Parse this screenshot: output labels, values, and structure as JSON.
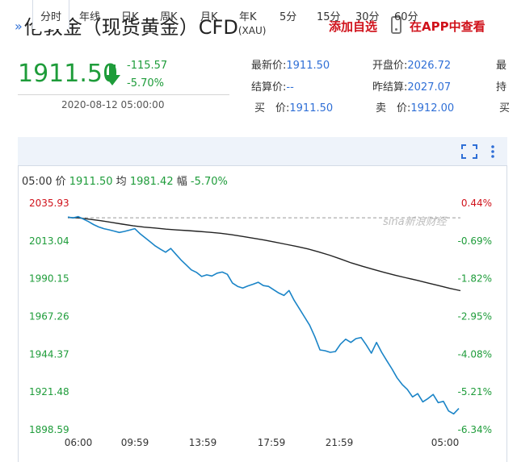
{
  "header": {
    "title": "伦敦金（现货黄金）CFD",
    "code": "(XAU)",
    "add_watch": "添加自选",
    "view_app": "在APP中查看"
  },
  "quote": {
    "price": "1911.50",
    "change": "-115.57",
    "change_pct": "-5.70%",
    "datetime": "2020-08-12 05:00:00",
    "fields": [
      {
        "label": "最新价:",
        "value": "1911.50"
      },
      {
        "label": "开盘价:",
        "value": "2026.72"
      },
      {
        "label": "结算价:",
        "value": "--"
      },
      {
        "label": "昨结算:",
        "value": "2027.07"
      },
      {
        "label": "买　价:",
        "value": "1911.50"
      },
      {
        "label": "卖　价:",
        "value": "1912.00"
      }
    ],
    "cut_labels": [
      "最",
      "持",
      "买"
    ]
  },
  "tabs": [
    "分时",
    "年线",
    "日K",
    "周K",
    "月K",
    "年K",
    "5分",
    "15分",
    "30分",
    "60分"
  ],
  "tools": {
    "fullscreen": "fullscreen-icon",
    "more": "more-icon"
  },
  "info_bar": {
    "time": "05:00",
    "price_label": "价",
    "price": "1911.50",
    "avg_label": "均",
    "avg": "1981.42",
    "amp_label": "幅",
    "amp": "-5.70%"
  },
  "watermark": "sina新浪财经",
  "colors": {
    "up": "#d0121b",
    "down": "#1e9c3a",
    "line": "#1a84c7",
    "avg": "#222222",
    "accent": "#2f6fd6"
  },
  "chart_data": {
    "type": "line",
    "y_left_ticks": [
      "2035.93",
      "2013.04",
      "1990.15",
      "1967.26",
      "1944.37",
      "1921.48",
      "1898.59"
    ],
    "y_right_ticks": [
      "0.44%",
      "-0.69%",
      "-1.82%",
      "-2.95%",
      "-4.08%",
      "-5.21%",
      "-6.34%"
    ],
    "x_ticks": [
      "06:00",
      "09:59",
      "13:59",
      "17:59",
      "21:59",
      "05:00"
    ],
    "ylim": [
      1898.59,
      2035.93
    ],
    "reference_close": 2027.07,
    "series": [
      {
        "values": [
          2027.5,
          2027.0,
          2027.8,
          2026.3,
          2024.8,
          2023.0,
          2021.5,
          2020.5,
          2019.8,
          2019.0,
          2018.2,
          2018.8,
          2019.6,
          2020.5,
          2017.5,
          2015.0,
          2012.5,
          2010.0,
          2008.0,
          2006.2,
          2008.5,
          2005.0,
          2001.5,
          1998.5,
          1995.5,
          1994.0,
          1991.5,
          1992.5,
          1991.8,
          1993.5,
          1994.2,
          1992.8,
          1987.5,
          1985.5,
          1984.5,
          1985.8,
          1986.8,
          1988.0,
          1986.0,
          1985.5,
          1983.5,
          1981.5,
          1980.0,
          1983.0,
          1977.0,
          1972.0,
          1967.0,
          1962.0,
          1955.0,
          1947.0,
          1946.5,
          1945.5,
          1946.0,
          1950.5,
          1953.5,
          1951.5,
          1953.8,
          1954.5,
          1950.0,
          1945.0,
          1951.5,
          1945.5,
          1940.5,
          1935.5,
          1930.0,
          1926.0,
          1923.0,
          1918.5,
          1920.5,
          1915.5,
          1917.5,
          1920.0,
          1915.0,
          1915.8,
          1910.0,
          1908.2,
          1911.5
        ]
      },
      {
        "values": [
          2027.3,
          2027.0,
          2026.2,
          2025.3,
          2024.3,
          2023.2,
          2022.2,
          2021.4,
          2020.9,
          2020.2,
          2019.7,
          2019.3,
          2018.8,
          2018.3,
          2017.7,
          2016.8,
          2015.8,
          2014.7,
          2013.6,
          2012.3,
          2011.0,
          2009.7,
          2008.2,
          2006.4,
          2004.4,
          2002.1,
          1999.7,
          1997.7,
          1995.8,
          1994.0,
          1992.3,
          1990.7,
          1989.2,
          1987.6,
          1986.0,
          1984.3,
          1982.9
        ]
      }
    ]
  }
}
